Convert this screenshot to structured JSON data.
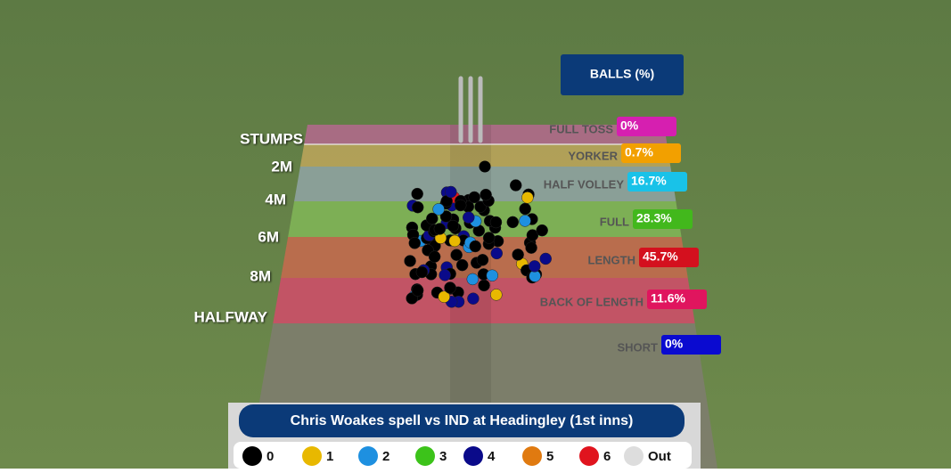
{
  "header": {
    "title": "BALLS (%)"
  },
  "distance_labels": [
    "STUMPS",
    "2M",
    "4M",
    "6M",
    "8M",
    "HALFWAY"
  ],
  "zones": [
    {
      "name": "FULL TOSS",
      "value": "0%"
    },
    {
      "name": "YORKER",
      "value": "0.7%"
    },
    {
      "name": "HALF VOLLEY",
      "value": "16.7%"
    },
    {
      "name": "FULL",
      "value": "28.3%"
    },
    {
      "name": "LENGTH",
      "value": "45.7%"
    },
    {
      "name": "BACK OF LENGTH",
      "value": "11.6%"
    },
    {
      "name": "SHORT",
      "value": "0%"
    }
  ],
  "footer": {
    "title": "Chris Woakes spell vs IND at Headingley (1st inns)"
  },
  "legend": [
    "0",
    "1",
    "2",
    "3",
    "4",
    "5",
    "6",
    "Out"
  ]
}
